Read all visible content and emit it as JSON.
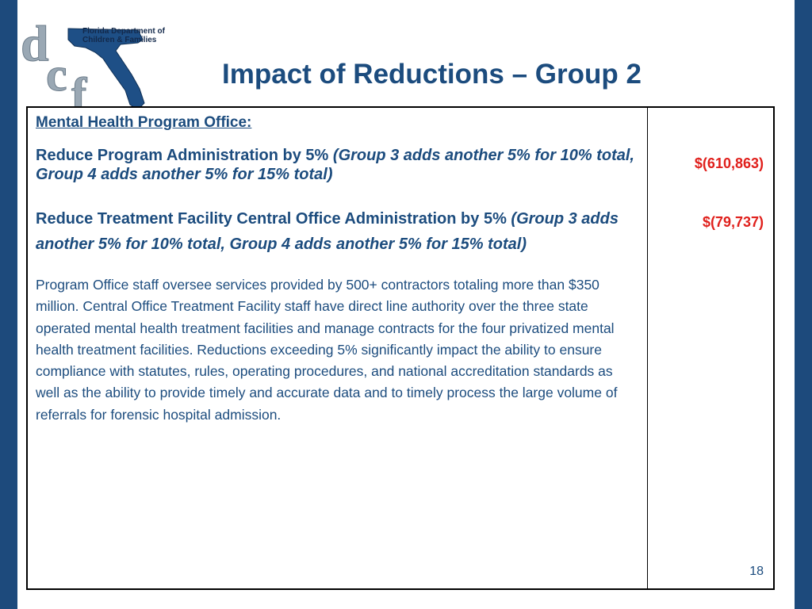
{
  "logo": {
    "org_line1": "Florida Department of",
    "org_line2": "Children & Families",
    "letters": "dcf"
  },
  "title": "Impact of Reductions – Group 2",
  "table": {
    "heading": "Mental Health Program Office:",
    "item1": {
      "lead": "Reduce Program Administration by 5% ",
      "italic": "(Group 3 adds another 5% for 10% total, Group 4 adds another 5% for 15% total)",
      "amount": "$(610,863)"
    },
    "item2": {
      "lead": "Reduce Treatment Facility Central Office Administration by 5% ",
      "italic": "(Group 3 adds another 5% for 10% total, Group 4 adds another 5% for 15% total)",
      "amount": "$(79,737)"
    },
    "description": "Program Office staff oversee services provided by 500+ contractors totaling more than $350 million. Central Office Treatment Facility staff have direct line authority over the three state operated mental health treatment facilities and manage contracts for the four privatized mental health treatment facilities. Reductions exceeding 5% significantly impact the ability to ensure compliance with statutes, rules, operating procedures, and national accreditation standards as well as the ability to provide timely and accurate data and to timely process the large volume of referrals for forensic hospital admission.",
    "page_number": "18"
  },
  "colors": {
    "background": "#1d4a7c",
    "text_blue": "#1c4c7e",
    "amount_red": "#e0201c"
  }
}
